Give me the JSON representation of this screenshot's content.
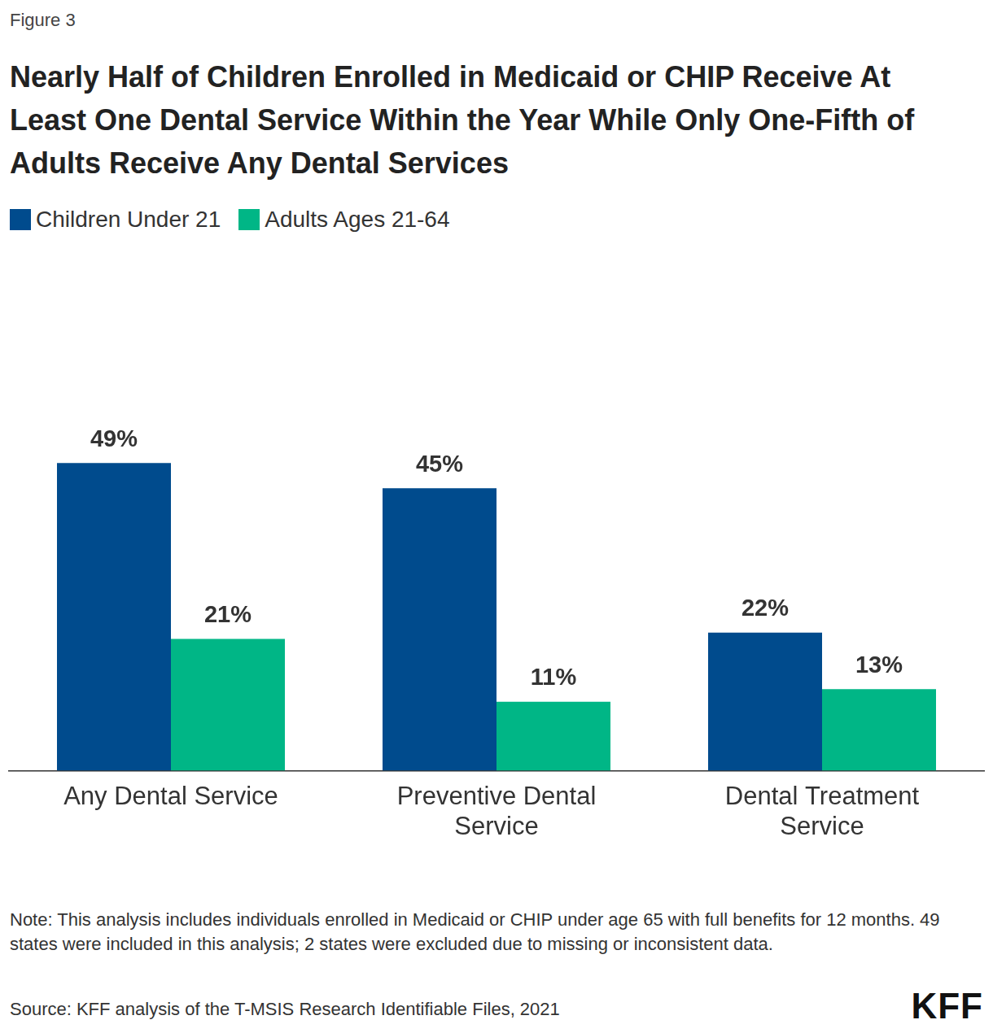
{
  "chart_data": {
    "type": "bar",
    "figure_label": "Figure 3",
    "title": "Nearly Half of Children Enrolled in Medicaid or CHIP Receive At Least One Dental Service Within the Year While Only One-Fifth of Adults Receive Any Dental Services",
    "categories": [
      "Any Dental Service",
      [
        "Preventive Dental",
        "Service"
      ],
      [
        "Dental Treatment",
        "Service"
      ]
    ],
    "series": [
      {
        "name": "Children Under 21",
        "color": "#004B8D",
        "values": [
          49,
          45,
          22
        ],
        "value_labels": [
          "49%",
          "45%",
          "22%"
        ]
      },
      {
        "name": "Adults Ages 21-64",
        "color": "#00B686",
        "values": [
          21,
          11,
          13
        ],
        "value_labels": [
          "21%",
          "11%",
          "13%"
        ]
      }
    ],
    "ylim": [
      0,
      80
    ],
    "grid": false,
    "legend": "top-left",
    "data_labels": true,
    "tick_labels": "x",
    "note": "Note: This analysis includes individuals enrolled in Medicaid or CHIP under age 65 with full benefits for 12 months. 49 states were included in this analysis; 2 states were excluded due to missing or inconsistent data.",
    "source": "Source: KFF analysis of the T-MSIS Research Identifiable Files, 2021",
    "logo": "KFF"
  }
}
